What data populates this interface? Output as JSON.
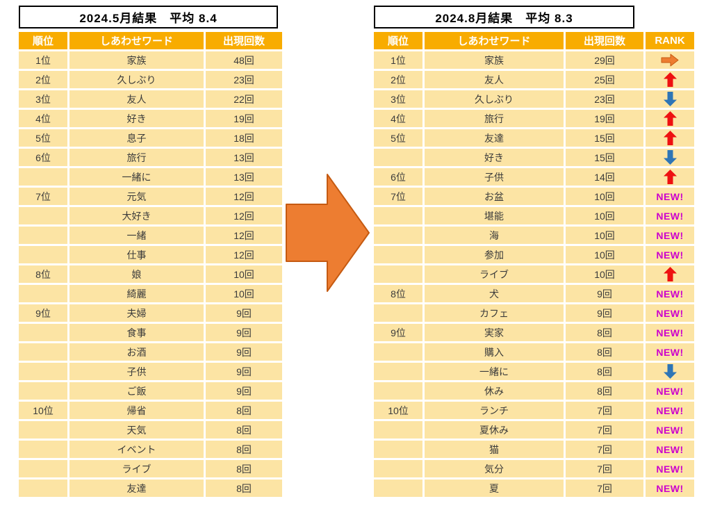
{
  "colors": {
    "header_bg": "#F8AC00",
    "header_text": "#FFFFFF",
    "row_bg": "#FCE4A4",
    "cell_text": "#3B3B3B",
    "up_arrow": "#EE1111",
    "down_arrow": "#2E75B6",
    "right_arrow": "#ED7D31",
    "right_arrow_border": "#C55A11",
    "new_text": "#CC00CC",
    "transition_fill": "#ED7D31",
    "transition_border": "#C55A11"
  },
  "left_table": {
    "title": "2024.5月結果　平均 8.4",
    "columns": [
      "順位",
      "しあわせワード",
      "出現回数"
    ],
    "rows": [
      {
        "rank": "1位",
        "word": "家族",
        "count": "48回"
      },
      {
        "rank": "2位",
        "word": "久しぶり",
        "count": "23回"
      },
      {
        "rank": "3位",
        "word": "友人",
        "count": "22回"
      },
      {
        "rank": "4位",
        "word": "好き",
        "count": "19回"
      },
      {
        "rank": "5位",
        "word": "息子",
        "count": "18回"
      },
      {
        "rank": "6位",
        "word": "旅行",
        "count": "13回"
      },
      {
        "rank": "",
        "word": "一緒に",
        "count": "13回"
      },
      {
        "rank": "7位",
        "word": "元気",
        "count": "12回"
      },
      {
        "rank": "",
        "word": "大好き",
        "count": "12回"
      },
      {
        "rank": "",
        "word": "一緒",
        "count": "12回"
      },
      {
        "rank": "",
        "word": "仕事",
        "count": "12回"
      },
      {
        "rank": "8位",
        "word": "娘",
        "count": "10回"
      },
      {
        "rank": "",
        "word": "綺麗",
        "count": "10回"
      },
      {
        "rank": "9位",
        "word": "夫婦",
        "count": "9回"
      },
      {
        "rank": "",
        "word": "食事",
        "count": "9回"
      },
      {
        "rank": "",
        "word": "お酒",
        "count": "9回"
      },
      {
        "rank": "",
        "word": "子供",
        "count": "9回"
      },
      {
        "rank": "",
        "word": "ご飯",
        "count": "9回"
      },
      {
        "rank": "10位",
        "word": "帰省",
        "count": "8回"
      },
      {
        "rank": "",
        "word": "天気",
        "count": "8回"
      },
      {
        "rank": "",
        "word": "イベント",
        "count": "8回"
      },
      {
        "rank": "",
        "word": "ライブ",
        "count": "8回"
      },
      {
        "rank": "",
        "word": "友達",
        "count": "8回"
      }
    ]
  },
  "right_table": {
    "title": "2024.8月結果　平均 8.3",
    "columns": [
      "順位",
      "しあわせワード",
      "出現回数",
      "RANK"
    ],
    "new_label": "NEW!",
    "rows": [
      {
        "rank": "1位",
        "word": "家族",
        "count": "29回",
        "trend": "same"
      },
      {
        "rank": "2位",
        "word": "友人",
        "count": "25回",
        "trend": "up"
      },
      {
        "rank": "3位",
        "word": "久しぶり",
        "count": "23回",
        "trend": "down"
      },
      {
        "rank": "4位",
        "word": "旅行",
        "count": "19回",
        "trend": "up"
      },
      {
        "rank": "5位",
        "word": "友達",
        "count": "15回",
        "trend": "up"
      },
      {
        "rank": "",
        "word": "好き",
        "count": "15回",
        "trend": "down"
      },
      {
        "rank": "6位",
        "word": "子供",
        "count": "14回",
        "trend": "up"
      },
      {
        "rank": "7位",
        "word": "お盆",
        "count": "10回",
        "trend": "new"
      },
      {
        "rank": "",
        "word": "堪能",
        "count": "10回",
        "trend": "new"
      },
      {
        "rank": "",
        "word": "海",
        "count": "10回",
        "trend": "new"
      },
      {
        "rank": "",
        "word": "参加",
        "count": "10回",
        "trend": "new"
      },
      {
        "rank": "",
        "word": "ライブ",
        "count": "10回",
        "trend": "up"
      },
      {
        "rank": "8位",
        "word": "犬",
        "count": "9回",
        "trend": "new"
      },
      {
        "rank": "",
        "word": "カフェ",
        "count": "9回",
        "trend": "new"
      },
      {
        "rank": "9位",
        "word": "実家",
        "count": "8回",
        "trend": "new"
      },
      {
        "rank": "",
        "word": "購入",
        "count": "8回",
        "trend": "new"
      },
      {
        "rank": "",
        "word": "一緒に",
        "count": "8回",
        "trend": "down"
      },
      {
        "rank": "",
        "word": "休み",
        "count": "8回",
        "trend": "new"
      },
      {
        "rank": "10位",
        "word": "ランチ",
        "count": "7回",
        "trend": "new"
      },
      {
        "rank": "",
        "word": "夏休み",
        "count": "7回",
        "trend": "new"
      },
      {
        "rank": "",
        "word": "猫",
        "count": "7回",
        "trend": "new"
      },
      {
        "rank": "",
        "word": "気分",
        "count": "7回",
        "trend": "new"
      },
      {
        "rank": "",
        "word": "夏",
        "count": "7回",
        "trend": "new"
      }
    ]
  },
  "transition_arrow": "right"
}
